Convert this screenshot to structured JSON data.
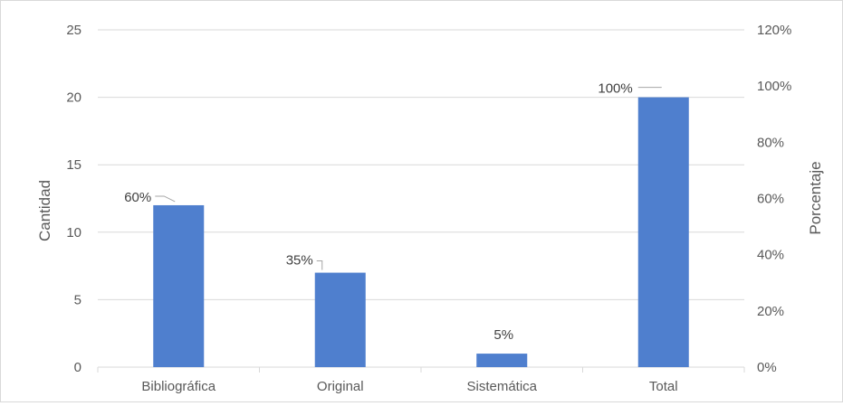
{
  "chart_data": {
    "type": "bar",
    "title": "",
    "categories": [
      "Bibliográfica",
      "Original",
      "Sistemática",
      "Total"
    ],
    "values": [
      12,
      7,
      1,
      20
    ],
    "percent_labels": [
      "60%",
      "35%",
      "5%",
      "100%"
    ],
    "ylabel": "Cantidad",
    "y2label": "Porcentaje",
    "ylim": [
      0,
      25
    ],
    "yticks": [
      "0",
      "5",
      "10",
      "15",
      "20",
      "25"
    ],
    "y2lim": [
      0,
      120
    ],
    "y2ticks": [
      "0%",
      "20%",
      "40%",
      "60%",
      "80%",
      "100%",
      "120%"
    ],
    "grid": true,
    "legend": "none",
    "bar_color": "#4f7fce",
    "grid_color": "#d9d9d9"
  }
}
